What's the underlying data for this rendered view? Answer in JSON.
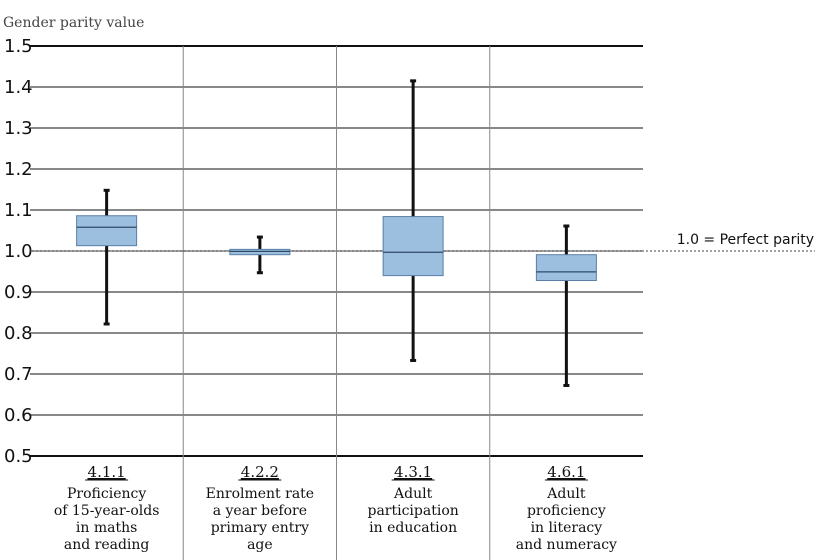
{
  "chart_data": {
    "type": "boxplot",
    "ylabel": "Gender parity value",
    "ylim": [
      0.5,
      1.5
    ],
    "yticks": [
      "0.5",
      "0.6",
      "0.7",
      "0.8",
      "0.9",
      "1.0",
      "1.1",
      "1.2",
      "1.3",
      "1.4",
      "1.5"
    ],
    "reference_line": {
      "value": 1.0,
      "label": "1.0 = Perfect parity"
    },
    "box_color": "#9cbfe0",
    "box_border": "#5a7fa6",
    "categories": [
      {
        "code": "4.1.1",
        "lines": [
          "Proficiency",
          "of 15-year-olds",
          "in maths",
          "and reading"
        ],
        "min": 0.822,
        "q1": 1.013,
        "median": 1.058,
        "q3": 1.086,
        "max": 1.148
      },
      {
        "code": "4.2.2",
        "lines": [
          "Enrolment rate",
          "a year before",
          "primary entry",
          "age"
        ],
        "min": 0.947,
        "q1": 0.991,
        "median": 0.999,
        "q3": 1.004,
        "max": 1.034
      },
      {
        "code": "4.3.1",
        "lines": [
          "Adult",
          "participation",
          "in education"
        ],
        "min": 0.733,
        "q1": 0.94,
        "median": 0.997,
        "q3": 1.084,
        "max": 1.415
      },
      {
        "code": "4.6.1",
        "lines": [
          "Adult",
          "proficiency",
          "in literacy",
          "and numeracy"
        ],
        "min": 0.672,
        "q1": 0.928,
        "median": 0.949,
        "q3": 0.991,
        "max": 1.061
      }
    ]
  }
}
